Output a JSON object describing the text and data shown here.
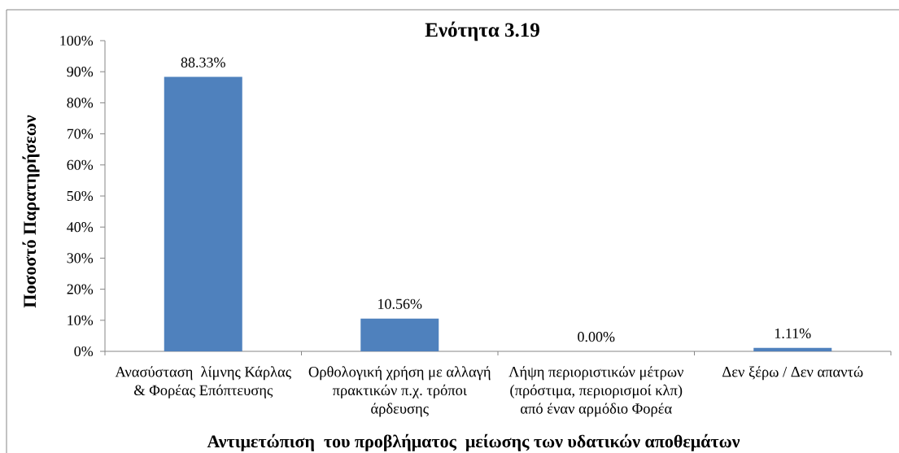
{
  "chart_data": {
    "type": "bar",
    "title": "Ενότητα 3.19",
    "xlabel": "Αντιμετώπιση  του προβλήματος  μείωσης των υδατικών αποθεμάτων",
    "ylabel": "Ποσοστό Παρατηρήσεων",
    "categories": [
      "Ανασύσταση  λίμνης Κάρλας & Φορέας Επόπτευσης",
      "Ορθολογική χρήση με αλλαγή πρακτικών π.χ. τρόποι άρδευσης",
      "Λήψη περιοριστικών μέτρων (πρόστιμα, περιορισμοί κλπ) από έναν αρμόδιο Φορέα",
      "Δεν ξέρω / Δεν απαντώ"
    ],
    "values": [
      88.33,
      10.56,
      0,
      1.11
    ],
    "value_labels": [
      "88.33%",
      "10.56%",
      "0.00%",
      "1.11%"
    ],
    "color": "#4f81bd",
    "ylim": [
      0,
      100
    ],
    "yticks": [
      {
        "value": 0,
        "label": "0%"
      },
      {
        "value": 10,
        "label": "10%"
      },
      {
        "value": 20,
        "label": "20%"
      },
      {
        "value": 30,
        "label": "30%"
      },
      {
        "value": 40,
        "label": "40%"
      },
      {
        "value": 50,
        "label": "50%"
      },
      {
        "value": 60,
        "label": "60%"
      },
      {
        "value": 70,
        "label": "70%"
      },
      {
        "value": 80,
        "label": "80%"
      },
      {
        "value": 90,
        "label": "90%"
      },
      {
        "value": 100,
        "label": "100%"
      }
    ]
  }
}
